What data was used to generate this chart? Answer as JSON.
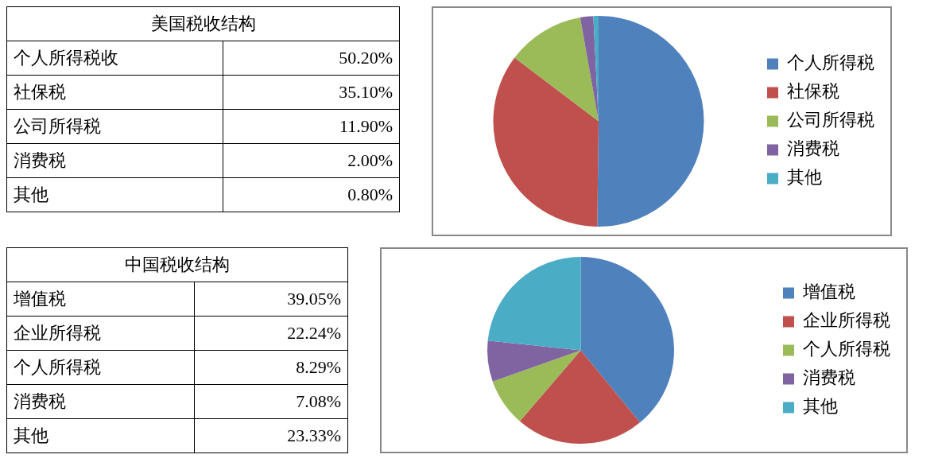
{
  "chart_data": [
    {
      "type": "other",
      "title": "美国税收结构",
      "annotations": [
        "个人所得税收",
        "50.20%",
        "社保税",
        "35.10%",
        "公司所得税",
        "11.90%",
        "消费税",
        "2.00%",
        "其他",
        "0.80%"
      ]
    },
    {
      "type": "pie",
      "categories": [
        "个人所得税",
        "社保税",
        "公司所得税",
        "消费税",
        "其他"
      ],
      "values": [
        50.2,
        35.1,
        11.9,
        2.0,
        0.8
      ],
      "colors": [
        "#4f81bd",
        "#c0504d",
        "#9bbb59",
        "#8064a2",
        "#4bacc6"
      ],
      "legend": "right"
    },
    {
      "type": "other",
      "title": "中国税收结构",
      "annotations": [
        "增值税",
        "39.05%",
        "企业所得税",
        "22.24%",
        "个人所得税",
        "8.29%",
        "消费税",
        "7.08%",
        "其他",
        "23.33%"
      ]
    },
    {
      "type": "pie",
      "categories": [
        "增值税",
        "企业所得税",
        "个人所得税",
        "消费税",
        "其他"
      ],
      "values": [
        39.05,
        22.24,
        8.29,
        7.08,
        23.33
      ],
      "colors": [
        "#4f81bd",
        "#c0504d",
        "#9bbb59",
        "#8064a2",
        "#4bacc6"
      ],
      "legend": "right"
    }
  ]
}
